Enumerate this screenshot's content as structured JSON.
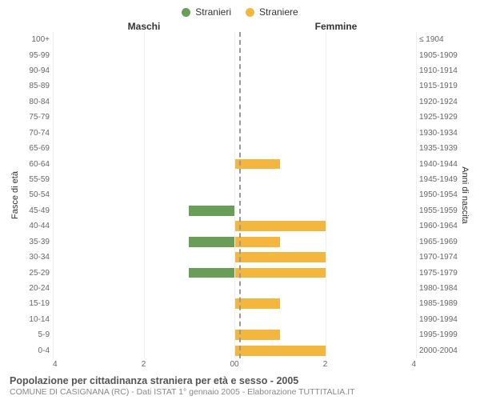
{
  "legend": [
    {
      "label": "Stranieri",
      "color": "#6a9e58"
    },
    {
      "label": "Straniere",
      "color": "#f3b63e"
    }
  ],
  "headers": {
    "left": "Maschi",
    "right": "Femmine"
  },
  "yaxis_titles": {
    "left": "Fasce di età",
    "right": "Anni di nascita"
  },
  "xmax": 4,
  "xticks_left": [
    "4",
    "2",
    "0"
  ],
  "xticks_right": [
    "0",
    "2",
    "4"
  ],
  "grid_color": "#eeeeee",
  "center_color": "#999999",
  "male_color": "#6a9e58",
  "female_color": "#f3b63e",
  "bands": [
    {
      "age": "100+",
      "birth": "≤ 1904",
      "m": 0,
      "f": 0
    },
    {
      "age": "95-99",
      "birth": "1905-1909",
      "m": 0,
      "f": 0
    },
    {
      "age": "90-94",
      "birth": "1910-1914",
      "m": 0,
      "f": 0
    },
    {
      "age": "85-89",
      "birth": "1915-1919",
      "m": 0,
      "f": 0
    },
    {
      "age": "80-84",
      "birth": "1920-1924",
      "m": 0,
      "f": 0
    },
    {
      "age": "75-79",
      "birth": "1925-1929",
      "m": 0,
      "f": 0
    },
    {
      "age": "70-74",
      "birth": "1930-1934",
      "m": 0,
      "f": 0
    },
    {
      "age": "65-69",
      "birth": "1935-1939",
      "m": 0,
      "f": 0
    },
    {
      "age": "60-64",
      "birth": "1940-1944",
      "m": 0,
      "f": 1
    },
    {
      "age": "55-59",
      "birth": "1945-1949",
      "m": 0,
      "f": 0
    },
    {
      "age": "50-54",
      "birth": "1950-1954",
      "m": 0,
      "f": 0
    },
    {
      "age": "45-49",
      "birth": "1955-1959",
      "m": 1,
      "f": 0
    },
    {
      "age": "40-44",
      "birth": "1960-1964",
      "m": 0,
      "f": 2
    },
    {
      "age": "35-39",
      "birth": "1965-1969",
      "m": 1,
      "f": 1
    },
    {
      "age": "30-34",
      "birth": "1970-1974",
      "m": 0,
      "f": 2
    },
    {
      "age": "25-29",
      "birth": "1975-1979",
      "m": 1,
      "f": 2
    },
    {
      "age": "20-24",
      "birth": "1980-1984",
      "m": 0,
      "f": 0
    },
    {
      "age": "15-19",
      "birth": "1985-1989",
      "m": 0,
      "f": 1
    },
    {
      "age": "10-14",
      "birth": "1990-1994",
      "m": 0,
      "f": 0
    },
    {
      "age": "5-9",
      "birth": "1995-1999",
      "m": 0,
      "f": 1
    },
    {
      "age": "0-4",
      "birth": "2000-2004",
      "m": 0,
      "f": 2
    }
  ],
  "caption": "Popolazione per cittadinanza straniera per età e sesso - 2005",
  "subcaption": "COMUNE DI CASIGNANA (RC) - Dati ISTAT 1° gennaio 2005 - Elaborazione TUTTITALIA.IT"
}
